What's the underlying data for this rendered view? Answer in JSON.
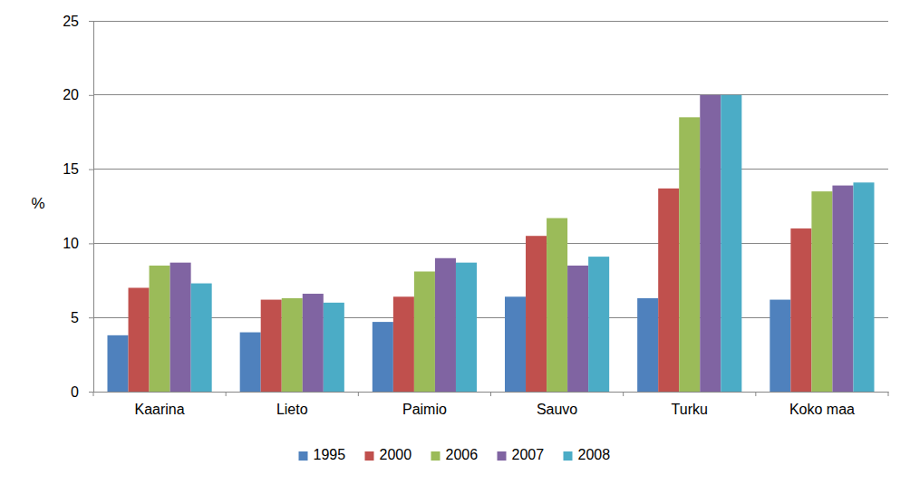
{
  "chart_data": {
    "type": "bar",
    "y_label": "%",
    "categories": [
      "Kaarina",
      "Lieto",
      "Paimio",
      "Sauvo",
      "Turku",
      "Koko maa"
    ],
    "series": [
      {
        "name": "1995",
        "color": "#4f81bd",
        "values": [
          3.8,
          4.0,
          4.7,
          6.4,
          6.3,
          6.2
        ]
      },
      {
        "name": "2000",
        "color": "#c0504d",
        "values": [
          7.0,
          6.2,
          6.4,
          10.5,
          13.7,
          11.0
        ]
      },
      {
        "name": "2006",
        "color": "#9bbb59",
        "values": [
          8.5,
          6.3,
          8.1,
          11.7,
          18.5,
          13.5
        ]
      },
      {
        "name": "2007",
        "color": "#8064a2",
        "values": [
          8.7,
          6.6,
          9.0,
          8.5,
          20.0,
          13.9
        ]
      },
      {
        "name": "2008",
        "color": "#4bacc6",
        "values": [
          7.3,
          6.0,
          8.7,
          9.1,
          20.0,
          14.1
        ]
      }
    ],
    "ylim": [
      0,
      25
    ],
    "yticks": [
      0,
      5,
      10,
      15,
      20,
      25
    ],
    "grid": true,
    "legend": "bottom"
  }
}
